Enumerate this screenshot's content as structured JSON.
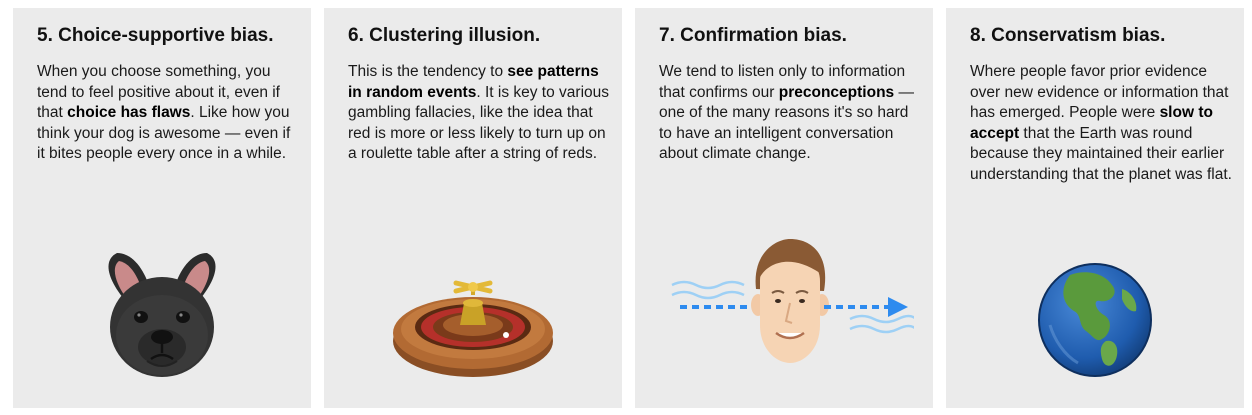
{
  "cards": [
    {
      "title": "5. Choice-supportive bias.",
      "segments": [
        {
          "text": "When you choose something, you tend to feel positive about it, even if that ",
          "bold": false
        },
        {
          "text": "choice has flaws",
          "bold": true
        },
        {
          "text": ". Like how you think your dog is awesome — even if it bites people every once in a while.",
          "bold": false
        }
      ],
      "icon": "french-bulldog-icon"
    },
    {
      "title": "6. Clustering illusion.",
      "segments": [
        {
          "text": "This is the tendency to ",
          "bold": false
        },
        {
          "text": "see patterns in random events",
          "bold": true
        },
        {
          "text": ". It is key to various gambling fallacies, like the idea that red is more or less likely to turn up on a roulette table after a string of reds.",
          "bold": false
        }
      ],
      "icon": "roulette-wheel-icon"
    },
    {
      "title": "7. Confirmation bias.",
      "segments": [
        {
          "text": "We tend to listen only to information that confirms our ",
          "bold": false
        },
        {
          "text": "preconceptions",
          "bold": true
        },
        {
          "text": " — one of the many reasons it's so hard to have an intelligent conversation about climate change.",
          "bold": false
        }
      ],
      "icon": "head-with-arrow-icon"
    },
    {
      "title": "8. Conservatism bias.",
      "segments": [
        {
          "text": "Where people favor prior evidence over new evidence or information that has emerged. People were ",
          "bold": false
        },
        {
          "text": "slow to accept",
          "bold": true
        },
        {
          "text": " that the Earth was round because they maintained their earlier understanding that the planet was flat.",
          "bold": false
        }
      ],
      "icon": "earth-globe-icon"
    }
  ],
  "colors": {
    "card_background": "#ebebeb",
    "arrow_blue": "#2e8bef",
    "wave_blue": "#9ed0f5"
  }
}
